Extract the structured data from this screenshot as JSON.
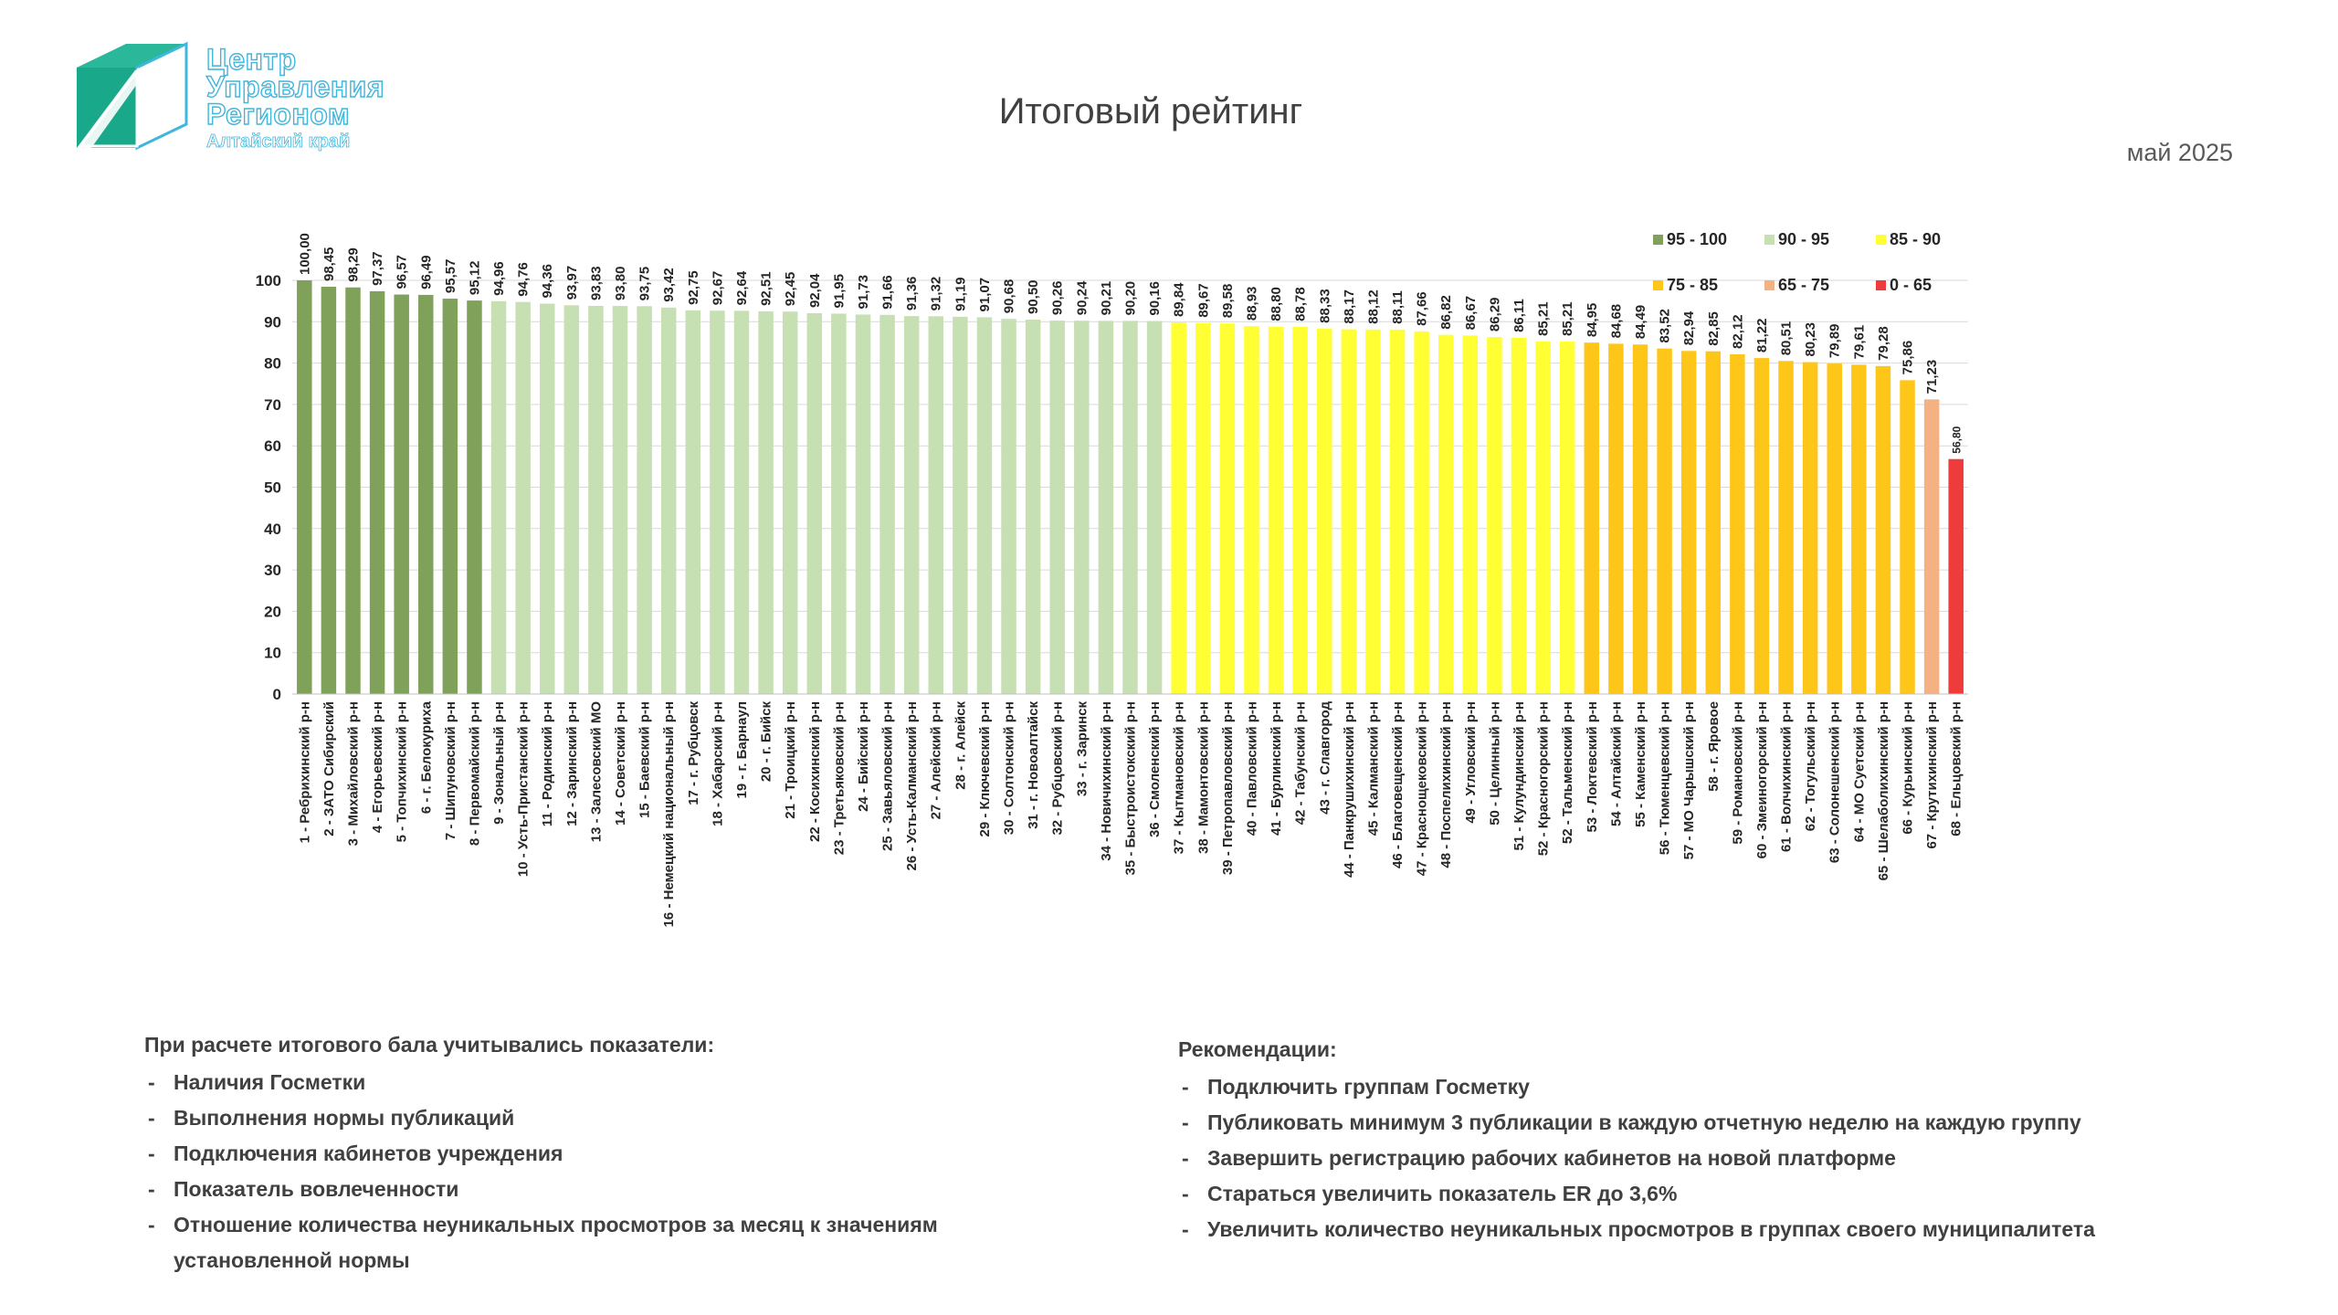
{
  "header": {
    "logo_line1": "Центр",
    "logo_line2": "Управления",
    "logo_line3": "Регионом",
    "logo_line4": "Алтайский край",
    "title": "Итоговый рейтинг",
    "period": "май 2025"
  },
  "chart_data": {
    "type": "bar",
    "ylim": [
      0,
      100
    ],
    "yticks": [
      0,
      10,
      20,
      30,
      40,
      50,
      60,
      70,
      80,
      90,
      100
    ],
    "grid": true,
    "legend_position": "top-right",
    "legend": [
      {
        "label": "95 - 100",
        "color": "#7fa15a",
        "min": 95
      },
      {
        "label": "90 - 95",
        "color": "#c6dfb3",
        "min": 90
      },
      {
        "label": "85 - 90",
        "color": "#ffff33",
        "min": 85
      },
      {
        "label": "75 - 85",
        "color": "#ffc61a",
        "min": 75
      },
      {
        "label": "65 - 75",
        "color": "#f4b183",
        "min": 65
      },
      {
        "label": "0 - 65",
        "color": "#ee3b3b",
        "min": 0
      }
    ],
    "categories": [
      "1 - Ребрихинский р-н",
      "2 - ЗАТО Сибирский",
      "3 - Михайловский р-н",
      "4 - Егорьевский р-н",
      "5 - Топчихинский р-н",
      "6 - г. Белокуриха",
      "7 - Шипуновский р-н",
      "8 - Первомайский р-н",
      "9 - Зональный р-н",
      "10 - Усть-Пристанский р-н",
      "11 - Родинский р-н",
      "12 - Заринский р-н",
      "13 - Залесовский МО",
      "14 - Советский р-н",
      "15 - Баевский р-н",
      "16 - Немецкий национальный р-н",
      "17 - г. Рубцовск",
      "18 - Хабарский р-н",
      "19 - г. Барнаул",
      "20 - г. Бийск",
      "21 - Троицкий р-н",
      "22 - Косихинский р-н",
      "23 - Третьяковский р-н",
      "24 - Бийский р-н",
      "25 - Завьяловский р-н",
      "26 - Усть-Калманский р-н",
      "27 - Алейский р-н",
      "28 - г. Алейск",
      "29 - Ключевский р-н",
      "30 - Солтонский р-н",
      "31 - г. Новоалтайск",
      "32 - Рубцовский р-н",
      "33 - г. Заринск",
      "34 - Новичихинский р-н",
      "35 - Быстроистокский р-н",
      "36 - Смоленский р-н",
      "37 - Кытмановский р-н",
      "38 - Мамонтовский р-н",
      "39 - Петропавловский р-н",
      "40 - Павловский р-н",
      "41 - Бурлинский р-н",
      "42 - Табунский р-н",
      "43 - г. Славгород",
      "44 - Панкрушихинский р-н",
      "45 - Калманский р-н",
      "46 - Благовещенский р-н",
      "47 - Краснощековский р-н",
      "48 - Поспелихинский р-н",
      "49 - Угловский р-н",
      "50 - Целинный р-н",
      "51 - Кулундинский р-н",
      "52 - Красногорский р-н",
      "52 - Тальменский р-н",
      "53 - Локтевский р-н",
      "54 - Алтайский р-н",
      "55 - Каменский р-н",
      "56 - Тюменцевский р-н",
      "57 - МО Чарышский р-н",
      "58 - г. Яровое",
      "59 - Романовский р-н",
      "60 - Змеиногорский р-н",
      "61 - Волчихинский р-н",
      "62 - Тогульский р-н",
      "63 - Солонешенский р-н",
      "64 - МО Суетский р-н",
      "65 - Шелаболихинский р-н",
      "66 - Курьинский р-н",
      "67 - Крутихинский р-н",
      "68 - Ельцовский р-н"
    ],
    "values": [
      100.0,
      98.45,
      98.29,
      97.37,
      96.57,
      96.49,
      95.57,
      95.12,
      94.96,
      94.76,
      94.36,
      93.97,
      93.83,
      93.8,
      93.75,
      93.42,
      92.75,
      92.67,
      92.64,
      92.51,
      92.45,
      92.04,
      91.95,
      91.73,
      91.66,
      91.36,
      91.32,
      91.19,
      91.07,
      90.68,
      90.5,
      90.26,
      90.24,
      90.21,
      90.2,
      90.16,
      89.84,
      89.67,
      89.58,
      88.93,
      88.8,
      88.78,
      88.33,
      88.17,
      88.12,
      88.11,
      87.66,
      86.82,
      86.67,
      86.29,
      86.11,
      85.21,
      85.21,
      84.95,
      84.68,
      84.49,
      83.52,
      82.94,
      82.85,
      82.12,
      81.22,
      80.51,
      80.23,
      79.89,
      79.61,
      79.28,
      75.86,
      71.23,
      56.8
    ],
    "value_labels": [
      "100,00",
      "98,45",
      "98,29",
      "97,37",
      "96,57",
      "96,49",
      "95,57",
      "95,12",
      "94,96",
      "94,76",
      "94,36",
      "93,97",
      "93,83",
      "93,80",
      "93,75",
      "93,42",
      "92,75",
      "92,67",
      "92,64",
      "92,51",
      "92,45",
      "92,04",
      "91,95",
      "91,73",
      "91,66",
      "91,36",
      "91,32",
      "91,19",
      "91,07",
      "90,68",
      "90,50",
      "90,26",
      "90,24",
      "90,21",
      "90,20",
      "90,16",
      "89,84",
      "89,67",
      "89,58",
      "88,93",
      "88,80",
      "88,78",
      "88,33",
      "88,17",
      "88,12",
      "88,11",
      "87,66",
      "86,82",
      "86,67",
      "86,29",
      "86,11",
      "85,21",
      "85,21",
      "84,95",
      "84,68",
      "84,49",
      "83,52",
      "82,94",
      "82,85",
      "82,12",
      "81,22",
      "80,51",
      "80,23",
      "79,89",
      "79,61",
      "79,28",
      "75,86",
      "71,23",
      "56,80"
    ]
  },
  "notes_left": {
    "heading": "При расчете итогового бала учитывались показатели:",
    "items": [
      "Наличия Госметки",
      "Выполнения нормы публикаций",
      "Подключения кабинетов учреждения",
      "Показатель вовлеченности",
      "Отношение количества неуникальных просмотров за месяц к значениям установленной нормы"
    ]
  },
  "notes_right": {
    "heading": "Рекомендации:",
    "items": [
      "Подключить группам Госметку",
      "Публиковать минимум 3 публикации в каждую отчетную неделю на каждую группу",
      "Завершить регистрацию рабочих кабинетов на новой платформе",
      "Стараться увеличить показатель ER до 3,6%",
      "Увеличить количество неуникальных просмотров в группах своего муниципалитета"
    ]
  }
}
